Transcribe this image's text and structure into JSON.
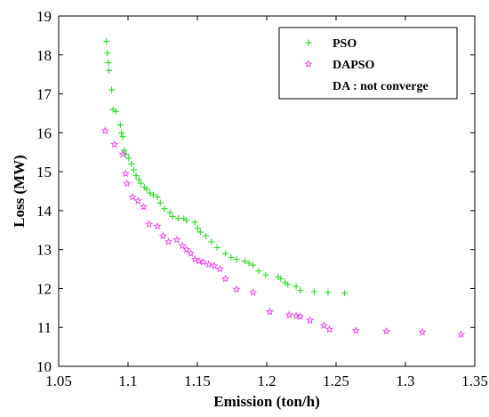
{
  "chart_data": {
    "type": "scatter",
    "title": "",
    "xlabel": "Emission (ton/h)",
    "ylabel": "Loss (MW)",
    "xlim": [
      1.05,
      1.35
    ],
    "ylim": [
      10,
      19
    ],
    "xticks": [
      "1.05",
      "1.1",
      "1.15",
      "1.2",
      "1.25",
      "1.3",
      "1.35"
    ],
    "yticks": [
      "10",
      "11",
      "12",
      "13",
      "14",
      "15",
      "16",
      "17",
      "18",
      "19"
    ],
    "grid": false,
    "legend_position": "top-right",
    "legend_note": "DA : not converge",
    "series": [
      {
        "name": "PSO",
        "marker": "plus",
        "color": "#33dd33",
        "x": [
          1.0845,
          1.0852,
          1.0858,
          1.0862,
          1.0882,
          1.0892,
          1.0912,
          1.0945,
          1.0952,
          1.0962,
          1.0972,
          1.0985,
          1.1005,
          1.1025,
          1.1042,
          1.1058,
          1.1078,
          1.1092,
          1.1118,
          1.1135,
          1.1158,
          1.1182,
          1.1212,
          1.1232,
          1.1262,
          1.1302,
          1.1322,
          1.1362,
          1.1402,
          1.1422,
          1.1482,
          1.1502,
          1.1522,
          1.1562,
          1.1602,
          1.1642,
          1.1702,
          1.1742,
          1.1782,
          1.1842,
          1.1872,
          1.1902,
          1.1942,
          1.1992,
          1.2082,
          1.2102,
          1.2132,
          1.2152,
          1.2212,
          1.2242,
          1.2342,
          1.2442,
          1.2562
        ],
        "y": [
          18.35,
          18.05,
          17.8,
          17.6,
          17.1,
          16.6,
          16.55,
          16.2,
          16.0,
          15.9,
          15.55,
          15.45,
          15.35,
          15.2,
          15.05,
          14.9,
          14.8,
          14.7,
          14.6,
          14.55,
          14.45,
          14.4,
          14.35,
          14.2,
          14.05,
          13.95,
          13.85,
          13.8,
          13.8,
          13.75,
          13.7,
          13.55,
          13.45,
          13.35,
          13.2,
          13.05,
          12.9,
          12.8,
          12.75,
          12.7,
          12.65,
          12.6,
          12.45,
          12.35,
          12.3,
          12.25,
          12.15,
          12.1,
          12.05,
          11.95,
          11.92,
          11.9,
          11.88
        ]
      },
      {
        "name": "DAPSO",
        "marker": "star",
        "color": "#ee44ee",
        "x": [
          1.0835,
          1.0902,
          1.0962,
          1.0982,
          1.0992,
          1.1032,
          1.1072,
          1.1112,
          1.1152,
          1.1212,
          1.1252,
          1.1292,
          1.1352,
          1.1392,
          1.1422,
          1.1452,
          1.1482,
          1.1512,
          1.1542,
          1.1582,
          1.1622,
          1.1662,
          1.1702,
          1.1782,
          1.1902,
          1.2022,
          1.2162,
          1.2212,
          1.2242,
          1.2312,
          1.2412,
          1.2452,
          1.2642,
          1.2862,
          1.3122,
          1.3402
        ],
        "y": [
          16.05,
          15.7,
          15.45,
          14.95,
          14.7,
          14.35,
          14.25,
          14.1,
          13.65,
          13.6,
          13.35,
          13.2,
          13.25,
          13.1,
          13.0,
          12.9,
          12.75,
          12.7,
          12.68,
          12.62,
          12.58,
          12.5,
          12.25,
          11.98,
          11.9,
          11.4,
          11.32,
          11.3,
          11.28,
          11.18,
          11.05,
          10.95,
          10.92,
          10.9,
          10.88,
          10.82
        ]
      }
    ]
  }
}
